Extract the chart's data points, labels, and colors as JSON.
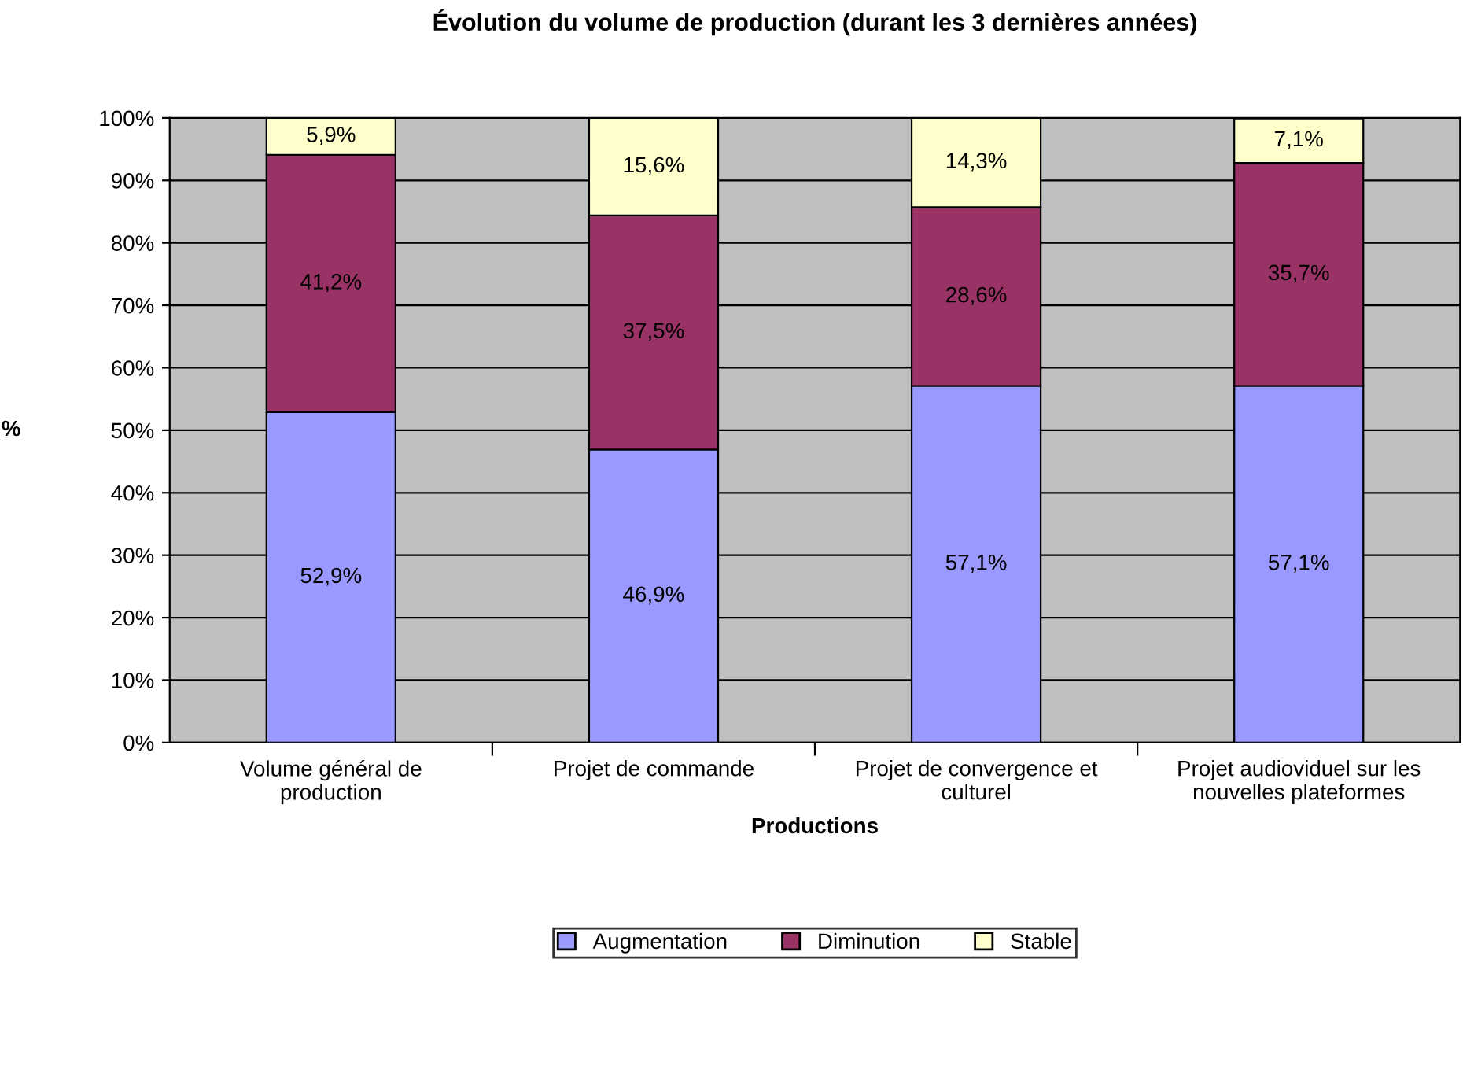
{
  "chart_data": {
    "type": "bar",
    "stacked": true,
    "title": "Évolution du volume de production (durant les 3 dernières années)",
    "xlabel": "Productions",
    "ylabel": "%",
    "categories": [
      "Volume général de\nproduction",
      "Projet de commande",
      "Projet de convergence et\nculturel",
      "Projet audioviduel sur les\nnouvelles plateformes"
    ],
    "series": [
      {
        "name": "Augmentation",
        "color": "#9999ff",
        "values": [
          52.9,
          46.9,
          57.1,
          57.1
        ],
        "value_labels": [
          "52,9%",
          "46,9%",
          "57,1%",
          "57,1%"
        ]
      },
      {
        "name": "Diminution",
        "color": "#993366",
        "values": [
          41.2,
          37.5,
          28.6,
          35.7
        ],
        "value_labels": [
          "41,2%",
          "37,5%",
          "28,6%",
          "35,7%"
        ]
      },
      {
        "name": "Stable",
        "color": "#ffffcc",
        "values": [
          5.9,
          15.6,
          14.3,
          7.1
        ],
        "value_labels": [
          "5,9%",
          "15,6%",
          "14,3%",
          "7,1%"
        ]
      }
    ],
    "ylim": [
      0,
      100
    ],
    "yticks": [
      {
        "value": 0,
        "label": "0%"
      },
      {
        "value": 10,
        "label": "10%"
      },
      {
        "value": 20,
        "label": "20%"
      },
      {
        "value": 30,
        "label": "30%"
      },
      {
        "value": 40,
        "label": "40%"
      },
      {
        "value": 50,
        "label": "50%"
      },
      {
        "value": 60,
        "label": "60%"
      },
      {
        "value": 70,
        "label": "70%"
      },
      {
        "value": 80,
        "label": "80%"
      },
      {
        "value": 90,
        "label": "90%"
      },
      {
        "value": 100,
        "label": "100%"
      }
    ],
    "grid": "y",
    "legend": "bottom"
  }
}
